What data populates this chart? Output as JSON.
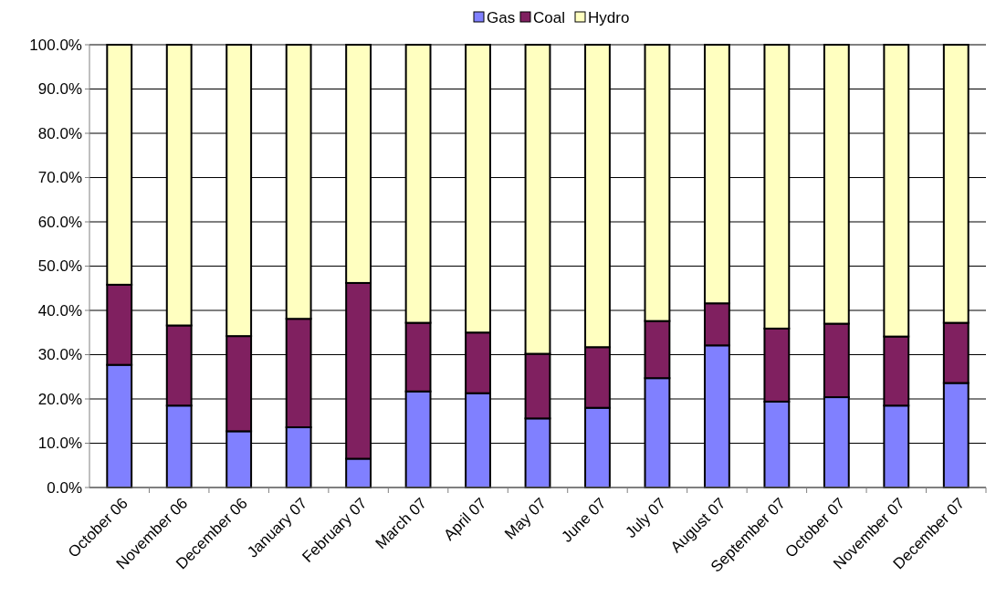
{
  "chart_data": {
    "type": "bar",
    "stacked": true,
    "categories": [
      "October 06",
      "November 06",
      "December 06",
      "January 07",
      "February 07",
      "March 07",
      "April 07",
      "May  07",
      "June 07",
      "July 07",
      "August 07",
      "September 07",
      "October 07",
      "November 07",
      "December 07"
    ],
    "series": [
      {
        "name": "Gas",
        "color": "#8080ff",
        "values": [
          27.7,
          18.5,
          12.7,
          13.6,
          6.5,
          21.7,
          21.3,
          15.6,
          18.0,
          24.7,
          32.1,
          19.4,
          20.4,
          18.5,
          23.6
        ]
      },
      {
        "name": "Coal",
        "color": "#802060",
        "values": [
          18.1,
          18.1,
          21.5,
          24.5,
          39.7,
          15.5,
          13.7,
          14.6,
          13.7,
          12.9,
          9.5,
          16.5,
          16.6,
          15.6,
          13.6
        ]
      },
      {
        "name": "Hydro",
        "color": "#ffffc0",
        "values": [
          54.2,
          63.4,
          65.8,
          61.9,
          53.8,
          62.8,
          65.0,
          69.8,
          68.3,
          62.4,
          58.4,
          64.1,
          63.0,
          65.9,
          62.8
        ]
      }
    ],
    "ylim": [
      0,
      100
    ],
    "yticks": [
      {
        "value": 0,
        "label": "0.0%"
      },
      {
        "value": 10,
        "label": "10.0%"
      },
      {
        "value": 20,
        "label": "20.0%"
      },
      {
        "value": 30,
        "label": "30.0%"
      },
      {
        "value": 40,
        "label": "40.0%"
      },
      {
        "value": 50,
        "label": "50.0%"
      },
      {
        "value": 60,
        "label": "60.0%"
      },
      {
        "value": 70,
        "label": "70.0%"
      },
      {
        "value": 80,
        "label": "80.0%"
      },
      {
        "value": 90,
        "label": "90.0%"
      },
      {
        "value": 100,
        "label": "100.0%"
      }
    ],
    "grid": "y",
    "legend": "top"
  }
}
